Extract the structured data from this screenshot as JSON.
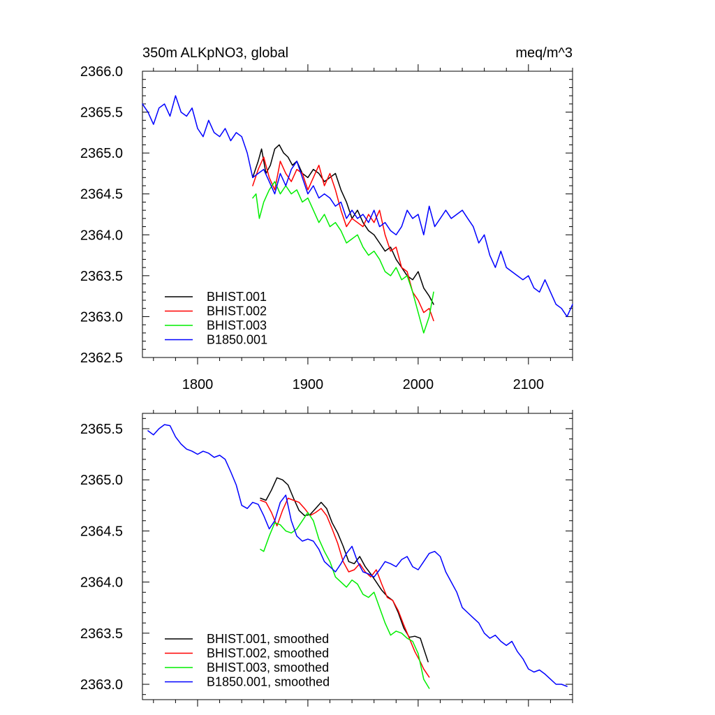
{
  "chart_data": [
    {
      "type": "line",
      "title": "350m ALKpNO3, global",
      "units": "meq/m^3",
      "xlim": [
        1750,
        2140
      ],
      "ylim": [
        2362.5,
        2366.0
      ],
      "xticks": [
        1800,
        1900,
        2000,
        2100
      ],
      "xtick_labels": [
        "1800",
        "1900",
        "2000",
        "2100"
      ],
      "yticks": [
        2362.5,
        2363.0,
        2363.5,
        2364.0,
        2364.5,
        2365.0,
        2365.5,
        2366.0
      ],
      "ytick_labels": [
        "2362.5",
        "2363.0",
        "2363.5",
        "2364.0",
        "2364.5",
        "2365.0",
        "2365.5",
        "2366.0"
      ],
      "grid": false,
      "legend": "bottom-left",
      "series": [
        {
          "name": "BHIST.001",
          "color": "#000000",
          "x": [
            1850,
            1855,
            1858,
            1862,
            1866,
            1870,
            1874,
            1878,
            1882,
            1886,
            1890,
            1895,
            1900,
            1905,
            1910,
            1915,
            1920,
            1925,
            1930,
            1935,
            1940,
            1945,
            1950,
            1955,
            1960,
            1965,
            1970,
            1975,
            1980,
            1985,
            1990,
            1995,
            2000,
            2005,
            2010,
            2014
          ],
          "y": [
            2364.7,
            2364.9,
            2365.05,
            2364.75,
            2364.85,
            2365.05,
            2365.1,
            2365.0,
            2364.95,
            2364.85,
            2364.9,
            2364.75,
            2364.7,
            2364.8,
            2364.75,
            2364.65,
            2364.7,
            2364.75,
            2364.55,
            2364.4,
            2364.2,
            2364.3,
            2364.15,
            2364.05,
            2364.0,
            2363.9,
            2363.8,
            2363.85,
            2363.7,
            2363.6,
            2363.5,
            2363.45,
            2363.55,
            2363.35,
            2363.25,
            2363.15
          ]
        },
        {
          "name": "BHIST.002",
          "color": "#ff0000",
          "x": [
            1850,
            1855,
            1860,
            1865,
            1870,
            1875,
            1880,
            1885,
            1890,
            1895,
            1900,
            1905,
            1910,
            1915,
            1920,
            1925,
            1930,
            1935,
            1940,
            1945,
            1950,
            1955,
            1960,
            1965,
            1970,
            1975,
            1980,
            1985,
            1990,
            1995,
            2000,
            2005,
            2010,
            2014
          ],
          "y": [
            2364.6,
            2364.8,
            2364.95,
            2364.7,
            2364.55,
            2364.9,
            2364.75,
            2364.65,
            2364.8,
            2364.75,
            2364.55,
            2364.7,
            2364.85,
            2364.6,
            2364.75,
            2364.55,
            2364.3,
            2364.1,
            2364.2,
            2364.15,
            2364.1,
            2364.25,
            2364.15,
            2364.3,
            2364.0,
            2363.8,
            2363.85,
            2363.6,
            2363.55,
            2363.3,
            2363.2,
            2363.05,
            2363.1,
            2362.95
          ]
        },
        {
          "name": "BHIST.003",
          "color": "#00ee00",
          "x": [
            1850,
            1853,
            1856,
            1860,
            1865,
            1870,
            1875,
            1880,
            1885,
            1890,
            1895,
            1900,
            1905,
            1910,
            1915,
            1920,
            1925,
            1930,
            1935,
            1940,
            1945,
            1950,
            1955,
            1960,
            1965,
            1970,
            1975,
            1980,
            1985,
            1990,
            1995,
            2000,
            2005,
            2010,
            2014
          ],
          "y": [
            2364.45,
            2364.5,
            2364.2,
            2364.4,
            2364.55,
            2364.65,
            2364.5,
            2364.6,
            2364.5,
            2364.55,
            2364.4,
            2364.45,
            2364.3,
            2364.15,
            2364.25,
            2364.1,
            2364.15,
            2364.05,
            2363.9,
            2363.95,
            2364.0,
            2363.85,
            2363.75,
            2363.8,
            2363.7,
            2363.55,
            2363.5,
            2363.6,
            2363.45,
            2363.5,
            2363.3,
            2363.05,
            2362.8,
            2363.0,
            2363.3
          ]
        },
        {
          "name": "B1850.001",
          "color": "#0000ff",
          "x": [
            1750,
            1755,
            1760,
            1765,
            1770,
            1775,
            1780,
            1785,
            1790,
            1795,
            1800,
            1805,
            1810,
            1815,
            1820,
            1825,
            1830,
            1835,
            1840,
            1845,
            1850,
            1855,
            1860,
            1865,
            1870,
            1875,
            1880,
            1885,
            1890,
            1895,
            1900,
            1905,
            1910,
            1915,
            1920,
            1925,
            1930,
            1935,
            1940,
            1945,
            1950,
            1955,
            1960,
            1965,
            1970,
            1975,
            1980,
            1985,
            1990,
            1995,
            2000,
            2005,
            2010,
            2015,
            2020,
            2025,
            2030,
            2035,
            2040,
            2045,
            2050,
            2055,
            2060,
            2065,
            2070,
            2075,
            2080,
            2085,
            2090,
            2095,
            2100,
            2105,
            2110,
            2115,
            2120,
            2125,
            2130,
            2135,
            2140
          ],
          "y": [
            2365.6,
            2365.5,
            2365.35,
            2365.55,
            2365.6,
            2365.45,
            2365.7,
            2365.5,
            2365.45,
            2365.55,
            2365.3,
            2365.2,
            2365.4,
            2365.25,
            2365.2,
            2365.3,
            2365.15,
            2365.25,
            2365.2,
            2365.0,
            2364.7,
            2364.75,
            2364.8,
            2364.65,
            2364.5,
            2364.75,
            2364.6,
            2364.8,
            2364.9,
            2364.7,
            2364.5,
            2364.6,
            2364.45,
            2364.5,
            2364.45,
            2364.35,
            2364.4,
            2364.2,
            2364.3,
            2364.2,
            2364.25,
            2364.15,
            2364.3,
            2364.1,
            2364.15,
            2364.05,
            2364.0,
            2364.1,
            2364.3,
            2364.2,
            2364.25,
            2364.0,
            2364.35,
            2364.1,
            2364.2,
            2364.3,
            2364.2,
            2364.25,
            2364.3,
            2364.2,
            2364.1,
            2363.9,
            2364.0,
            2363.75,
            2363.6,
            2363.8,
            2363.6,
            2363.55,
            2363.5,
            2363.45,
            2363.5,
            2363.35,
            2363.3,
            2363.45,
            2363.3,
            2363.15,
            2363.1,
            2363.0,
            2363.15
          ]
        }
      ]
    },
    {
      "type": "line",
      "title": "",
      "xlim": [
        1750,
        2140
      ],
      "ylim": [
        2362.85,
        2365.65
      ],
      "xticks": [
        1800,
        1900,
        2000,
        2100
      ],
      "xtick_labels": [],
      "yticks": [
        2363.0,
        2363.5,
        2364.0,
        2364.5,
        2365.0,
        2365.5
      ],
      "ytick_labels": [
        "2363.0",
        "2363.5",
        "2364.0",
        "2364.5",
        "2365.0",
        "2365.5"
      ],
      "grid": false,
      "legend": "bottom-left",
      "series": [
        {
          "name": "BHIST.001, smoothed",
          "color": "#000000",
          "x": [
            1857,
            1862,
            1867,
            1872,
            1877,
            1882,
            1887,
            1892,
            1897,
            1902,
            1907,
            1912,
            1917,
            1922,
            1927,
            1932,
            1937,
            1942,
            1947,
            1952,
            1957,
            1962,
            1967,
            1972,
            1977,
            1982,
            1987,
            1992,
            1997,
            2002,
            2005,
            2009
          ],
          "y": [
            2364.82,
            2364.8,
            2364.9,
            2365.02,
            2365.0,
            2364.95,
            2364.82,
            2364.7,
            2364.65,
            2364.66,
            2364.72,
            2364.78,
            2364.72,
            2364.58,
            2364.48,
            2364.35,
            2364.2,
            2364.18,
            2364.25,
            2364.15,
            2364.08,
            2364.0,
            2363.92,
            2363.86,
            2363.82,
            2363.7,
            2363.55,
            2363.46,
            2363.47,
            2363.45,
            2363.35,
            2363.22
          ]
        },
        {
          "name": "BHIST.002, smoothed",
          "color": "#ff0000",
          "x": [
            1857,
            1862,
            1867,
            1872,
            1877,
            1882,
            1887,
            1892,
            1897,
            1902,
            1907,
            1912,
            1917,
            1922,
            1927,
            1932,
            1937,
            1942,
            1947,
            1952,
            1957,
            1962,
            1967,
            1972,
            1977,
            1982,
            1987,
            1992,
            1997,
            2002,
            2005,
            2010
          ],
          "y": [
            2364.8,
            2364.78,
            2364.68,
            2364.55,
            2364.7,
            2364.82,
            2364.8,
            2364.78,
            2364.72,
            2364.65,
            2364.68,
            2364.72,
            2364.65,
            2364.52,
            2364.38,
            2364.2,
            2364.1,
            2364.12,
            2364.18,
            2364.1,
            2364.05,
            2364.12,
            2363.98,
            2363.85,
            2363.82,
            2363.72,
            2363.58,
            2363.45,
            2363.32,
            2363.22,
            2363.15,
            2363.07
          ]
        },
        {
          "name": "BHIST.003, smoothed",
          "color": "#00ee00",
          "x": [
            1857,
            1860,
            1865,
            1870,
            1875,
            1880,
            1885,
            1890,
            1895,
            1900,
            1905,
            1910,
            1915,
            1920,
            1925,
            1930,
            1935,
            1940,
            1945,
            1950,
            1955,
            1960,
            1965,
            1970,
            1975,
            1980,
            1985,
            1990,
            1995,
            2000,
            2005,
            2010
          ],
          "y": [
            2364.32,
            2364.3,
            2364.45,
            2364.58,
            2364.56,
            2364.5,
            2364.48,
            2364.52,
            2364.6,
            2364.68,
            2364.6,
            2364.42,
            2364.3,
            2364.2,
            2364.05,
            2364.0,
            2363.95,
            2364.02,
            2363.98,
            2363.88,
            2363.85,
            2363.9,
            2363.75,
            2363.6,
            2363.48,
            2363.52,
            2363.5,
            2363.45,
            2363.42,
            2363.3,
            2363.05,
            2362.96
          ]
        },
        {
          "name": "B1850.001, smoothed",
          "color": "#0000ff",
          "x": [
            1755,
            1760,
            1765,
            1770,
            1775,
            1780,
            1785,
            1790,
            1795,
            1800,
            1805,
            1810,
            1815,
            1820,
            1825,
            1830,
            1835,
            1840,
            1845,
            1850,
            1855,
            1860,
            1865,
            1870,
            1875,
            1880,
            1885,
            1890,
            1895,
            1900,
            1905,
            1910,
            1915,
            1920,
            1925,
            1930,
            1935,
            1940,
            1945,
            1950,
            1955,
            1960,
            1965,
            1970,
            1975,
            1980,
            1985,
            1990,
            1995,
            2000,
            2005,
            2010,
            2015,
            2020,
            2025,
            2030,
            2035,
            2040,
            2045,
            2050,
            2055,
            2060,
            2065,
            2070,
            2075,
            2080,
            2085,
            2090,
            2095,
            2100,
            2105,
            2110,
            2115,
            2120,
            2125,
            2130,
            2135
          ],
          "y": [
            2365.48,
            2365.44,
            2365.5,
            2365.54,
            2365.53,
            2365.42,
            2365.35,
            2365.3,
            2365.28,
            2365.25,
            2365.28,
            2365.26,
            2365.22,
            2365.24,
            2365.2,
            2365.08,
            2364.95,
            2364.75,
            2364.72,
            2364.78,
            2364.76,
            2364.65,
            2364.52,
            2364.6,
            2364.78,
            2364.85,
            2364.6,
            2364.45,
            2364.4,
            2364.42,
            2364.4,
            2364.32,
            2364.2,
            2364.15,
            2364.1,
            2364.18,
            2364.28,
            2364.35,
            2364.2,
            2364.1,
            2364.08,
            2364.05,
            2364.12,
            2364.2,
            2364.18,
            2364.15,
            2364.22,
            2364.25,
            2364.15,
            2364.12,
            2364.2,
            2364.28,
            2364.3,
            2364.25,
            2364.1,
            2364.0,
            2363.9,
            2363.75,
            2363.7,
            2363.65,
            2363.6,
            2363.5,
            2363.45,
            2363.48,
            2363.42,
            2363.38,
            2363.42,
            2363.32,
            2363.25,
            2363.15,
            2363.12,
            2363.14,
            2363.1,
            2363.05,
            2363.0,
            2363.0,
            2362.98
          ]
        }
      ]
    }
  ]
}
